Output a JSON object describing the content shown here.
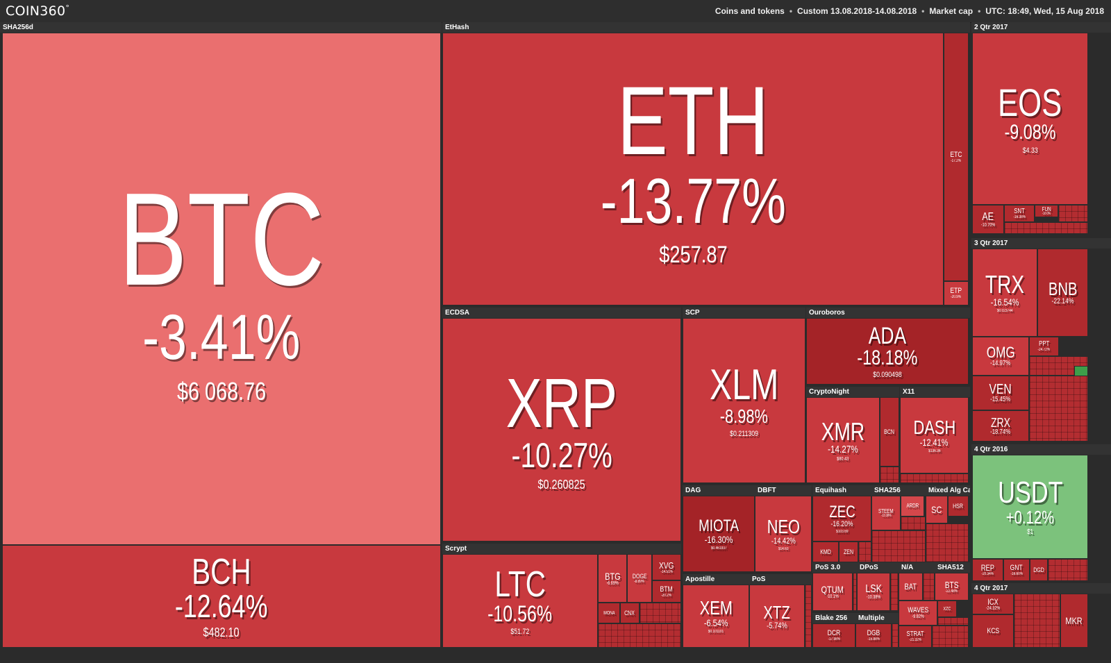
{
  "header": {
    "logo": "COIN360",
    "logo_mark": "°",
    "filter_scope": "Coins and tokens",
    "date_range": "Custom 13.08.2018-14.08.2018",
    "metric": "Market cap",
    "timestamp": "UTC: 18:49, Wed, 15 Aug 2018",
    "separator": "•"
  },
  "groups": {
    "sha256d": "SHA256d",
    "ethash": "EtHash",
    "q2_2017": "2 Qtr 2017",
    "q3_2017": "3 Qtr 2017",
    "q4_2016": "4 Qtr 2016",
    "q4_2017": "4 Qtr 2017",
    "ecdsa": "ECDSA",
    "scp": "SCP",
    "ouroboros": "Ouroboros",
    "cryptonight": "CryptoNight",
    "x11": "X11",
    "scrypt": "Scrypt",
    "dag": "DAG",
    "dbft": "DBFT",
    "equihash": "Equihash",
    "sha256": "SHA256",
    "mixed": "Mixed Alg Cat",
    "apostille": "Apostille",
    "pos": "PoS",
    "pos3": "PoS 3.0",
    "dpos": "DPoS",
    "na": "N/A",
    "sha512": "SHA512",
    "blake256": "Blake 256",
    "multiple": "Multiple"
  },
  "coins": {
    "btc": {
      "symbol": "BTC",
      "change": "-3.41%",
      "price": "$6 068.76"
    },
    "bch": {
      "symbol": "BCH",
      "change": "-12.64%",
      "price": "$482.10"
    },
    "eth": {
      "symbol": "ETH",
      "change": "-13.77%",
      "price": "$257.87"
    },
    "etc": {
      "symbol": "ETC",
      "change": "-17.2%"
    },
    "etp": {
      "symbol": "ETP",
      "change": "-20.9%"
    },
    "eos": {
      "symbol": "EOS",
      "change": "-9.08%",
      "price": "$4.33"
    },
    "ae": {
      "symbol": "AE",
      "change": "-10.70%"
    },
    "snt": {
      "symbol": "SNT",
      "change": "-16.38%"
    },
    "fun": {
      "symbol": "FUN",
      "change": "-10.0%"
    },
    "trx": {
      "symbol": "TRX",
      "change": "-16.54%",
      "price": "$0.023744"
    },
    "bnb": {
      "symbol": "BNB",
      "change": "-22.14%"
    },
    "omg": {
      "symbol": "OMG",
      "change": "-14.97%"
    },
    "ppt": {
      "symbol": "PPT",
      "change": "-24.72%"
    },
    "ven": {
      "symbol": "VEN",
      "change": "-15.45%"
    },
    "zrx": {
      "symbol": "ZRX",
      "change": "-18.74%"
    },
    "usdt": {
      "symbol": "USDT",
      "change": "+0.12%",
      "price": "$1"
    },
    "rep": {
      "symbol": "REP",
      "change": "-20.34%"
    },
    "gnt": {
      "symbol": "GNT",
      "change": "-16.60%"
    },
    "dgd": {
      "symbol": "DGD"
    },
    "icx": {
      "symbol": "ICX",
      "change": "-24.32%"
    },
    "kcs": {
      "symbol": "KCS"
    },
    "mkr": {
      "symbol": "MKR"
    },
    "xrp": {
      "symbol": "XRP",
      "change": "-10.27%",
      "price": "$0.260825"
    },
    "xlm": {
      "symbol": "XLM",
      "change": "-8.98%",
      "price": "$0.211309"
    },
    "ada": {
      "symbol": "ADA",
      "change": "-18.18%",
      "price": "$0.090498"
    },
    "xmr": {
      "symbol": "XMR",
      "change": "-14.27%",
      "price": "$80.43"
    },
    "bcn": {
      "symbol": "BCN"
    },
    "dash": {
      "symbol": "DASH",
      "change": "-12.41%",
      "price": "$136.36"
    },
    "ltc": {
      "symbol": "LTC",
      "change": "-10.56%",
      "price": "$51.72"
    },
    "btg": {
      "symbol": "BTG",
      "change": "-6.69%"
    },
    "doge": {
      "symbol": "DOGE",
      "change": "-8.89%"
    },
    "xvg": {
      "symbol": "XVG",
      "change": "-14.51%"
    },
    "btm": {
      "symbol": "BTM",
      "change": "-20.2%"
    },
    "mona": {
      "symbol": "MONA"
    },
    "cnx": {
      "symbol": "CNX"
    },
    "miota": {
      "symbol": "MIOTA",
      "change": "-16.30%",
      "price": "$0.461937"
    },
    "neo": {
      "symbol": "NEO",
      "change": "-14.42%",
      "price": "$14.63"
    },
    "zec": {
      "symbol": "ZEC",
      "change": "-16.20%",
      "price": "$103.69"
    },
    "kmd": {
      "symbol": "KMD"
    },
    "zen": {
      "symbol": "ZEN"
    },
    "steem": {
      "symbol": "STEEM",
      "change": "-13.38%"
    },
    "ardr": {
      "symbol": "ARDR"
    },
    "sc": {
      "symbol": "SC"
    },
    "hsr": {
      "symbol": "HSR"
    },
    "xem": {
      "symbol": "XEM",
      "change": "-6.54%",
      "price": "$0.101101"
    },
    "xtz": {
      "symbol": "XTZ",
      "change": "-5.74%"
    },
    "qtum": {
      "symbol": "QTUM",
      "change": "-10.1%"
    },
    "lsk": {
      "symbol": "LSK",
      "change": "-10.38%"
    },
    "bat": {
      "symbol": "BAT"
    },
    "bts": {
      "symbol": "BTS",
      "change": "-22.48%"
    },
    "waves": {
      "symbol": "WAVES",
      "change": "-9.82%"
    },
    "xzc": {
      "symbol": "XZC"
    },
    "dcr": {
      "symbol": "DCR",
      "change": "-17.98%"
    },
    "dgb": {
      "symbol": "DGB",
      "change": "-15.88%"
    },
    "strat": {
      "symbol": "STRAT",
      "change": "-21.32%"
    }
  }
}
